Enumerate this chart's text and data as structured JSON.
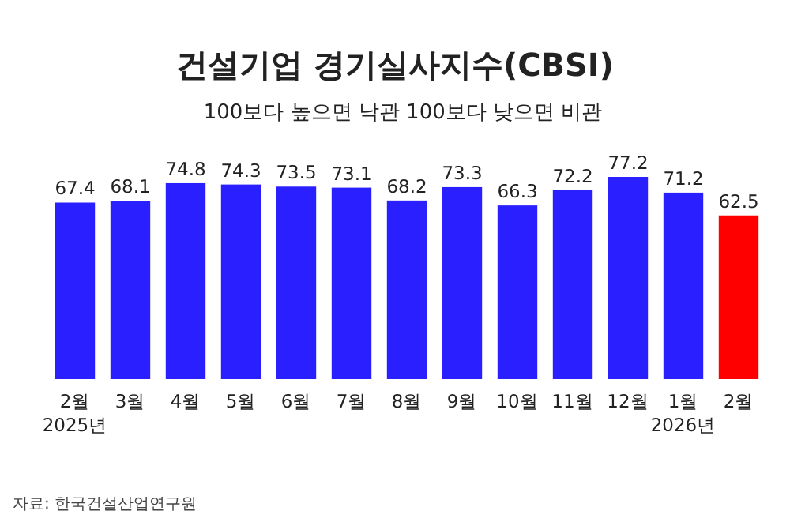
{
  "chart_data": {
    "type": "bar",
    "title": "건설기업 경기실사지수(CBSI)",
    "subtitle": "100보다 높으면 낙관 100보다 낮으면 비관",
    "categories": [
      "2월\n2025년",
      "3월",
      "4월",
      "5월",
      "6월",
      "7월",
      "8월",
      "9월",
      "10월",
      "11월",
      "12월",
      "1월\n2026년",
      "2월"
    ],
    "values": [
      67.4,
      68.1,
      74.8,
      74.3,
      73.5,
      73.1,
      68.2,
      73.3,
      66.3,
      72.2,
      77.2,
      71.2,
      62.5
    ],
    "colors": [
      "#2a1fff",
      "#2a1fff",
      "#2a1fff",
      "#2a1fff",
      "#2a1fff",
      "#2a1fff",
      "#2a1fff",
      "#2a1fff",
      "#2a1fff",
      "#2a1fff",
      "#2a1fff",
      "#2a1fff",
      "#ff0000"
    ],
    "data_labels": true,
    "annotations": [
      "자료: 한국건설산업연구원"
    ]
  }
}
